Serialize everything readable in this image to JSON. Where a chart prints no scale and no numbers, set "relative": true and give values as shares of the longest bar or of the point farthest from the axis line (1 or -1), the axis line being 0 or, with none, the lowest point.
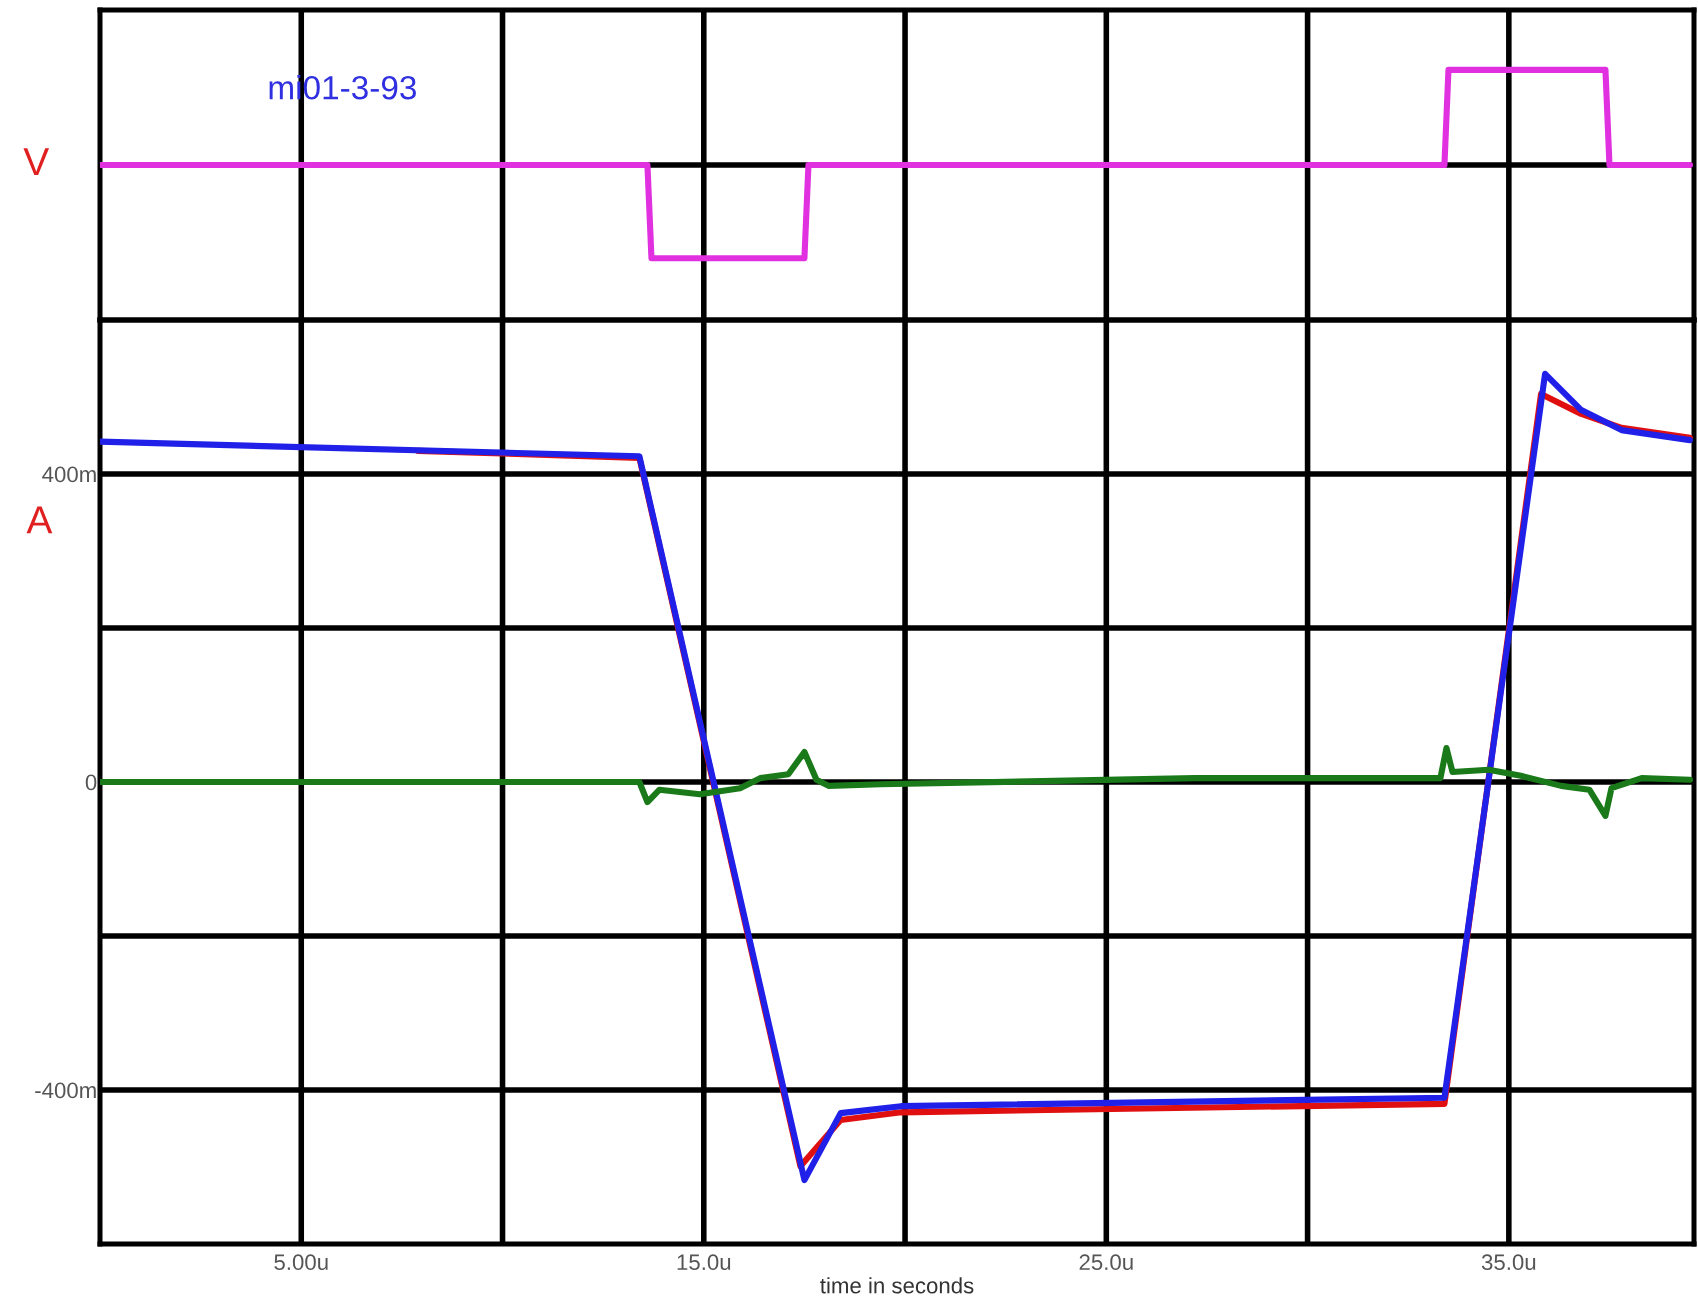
{
  "chart_data": [
    {
      "type": "line",
      "title": "mi01-3-93",
      "ylabel": "V",
      "relative": true,
      "xlim": [
        0,
        39.6
      ],
      "xticks": [
        5,
        10,
        15,
        20,
        25,
        30,
        35
      ],
      "tick_labels": false,
      "grid": "x",
      "series": [
        {
          "color": "#e030e0",
          "x": [
            0,
            13.6,
            13.7,
            17.5,
            17.6,
            33.4,
            33.5,
            37.4,
            37.5,
            39.5
          ],
          "values": [
            0,
            0,
            -0.98,
            -0.98,
            0,
            0,
            1,
            1,
            0,
            0
          ]
        }
      ]
    },
    {
      "type": "line",
      "ylabel": "A",
      "xlabel": "time in seconds",
      "xlim": [
        0,
        39.6
      ],
      "ylim": [
        -600,
        600
      ],
      "xticks": [
        {
          "value": 5,
          "label": "5.00u"
        },
        {
          "value": 10,
          "label": null
        },
        {
          "value": 15,
          "label": "15.0u"
        },
        {
          "value": 20,
          "label": null
        },
        {
          "value": 25,
          "label": "25.0u"
        },
        {
          "value": 30,
          "label": null
        },
        {
          "value": 35,
          "label": "35.0u"
        }
      ],
      "yticks": [
        {
          "value": -400,
          "label": "-400m"
        },
        {
          "value": -200,
          "label": null
        },
        {
          "value": 0,
          "label": "0"
        },
        {
          "value": 200,
          "label": null
        },
        {
          "value": 400,
          "label": "400m"
        }
      ],
      "grid": true,
      "series": [
        {
          "color": "#e01010",
          "x": [
            7.9,
            13.4,
            17.4,
            18.4,
            19.9,
            33.4,
            35.8,
            36.8,
            37.8,
            39.5
          ],
          "values": [
            430,
            421,
            -499,
            -439,
            -429,
            -418,
            504,
            478,
            460,
            447
          ]
        },
        {
          "color": "#2020e8",
          "x": [
            0,
            13.4,
            17.5,
            18.4,
            19.9,
            33.4,
            35.9,
            36.8,
            37.8,
            39.5
          ],
          "values": [
            442,
            423,
            -517,
            -430,
            -421,
            -410,
            530,
            483,
            457,
            444
          ]
        },
        {
          "color": "#1a7a1a",
          "x": [
            0,
            13.4,
            13.6,
            13.9,
            14.9,
            15.9,
            16.4,
            17.1,
            17.5,
            17.8,
            18.1,
            19.4,
            27.2,
            33.3,
            33.45,
            33.6,
            34.5,
            35.3,
            36.3,
            37.0,
            37.4,
            37.55,
            38.3,
            39.5
          ],
          "values": [
            0,
            0,
            -26,
            -10,
            -16,
            -8,
            5,
            10,
            39,
            3,
            -5,
            -3,
            5,
            5,
            44,
            13,
            16,
            8,
            -5,
            -10,
            -44,
            -8,
            5,
            3
          ]
        }
      ]
    }
  ]
}
